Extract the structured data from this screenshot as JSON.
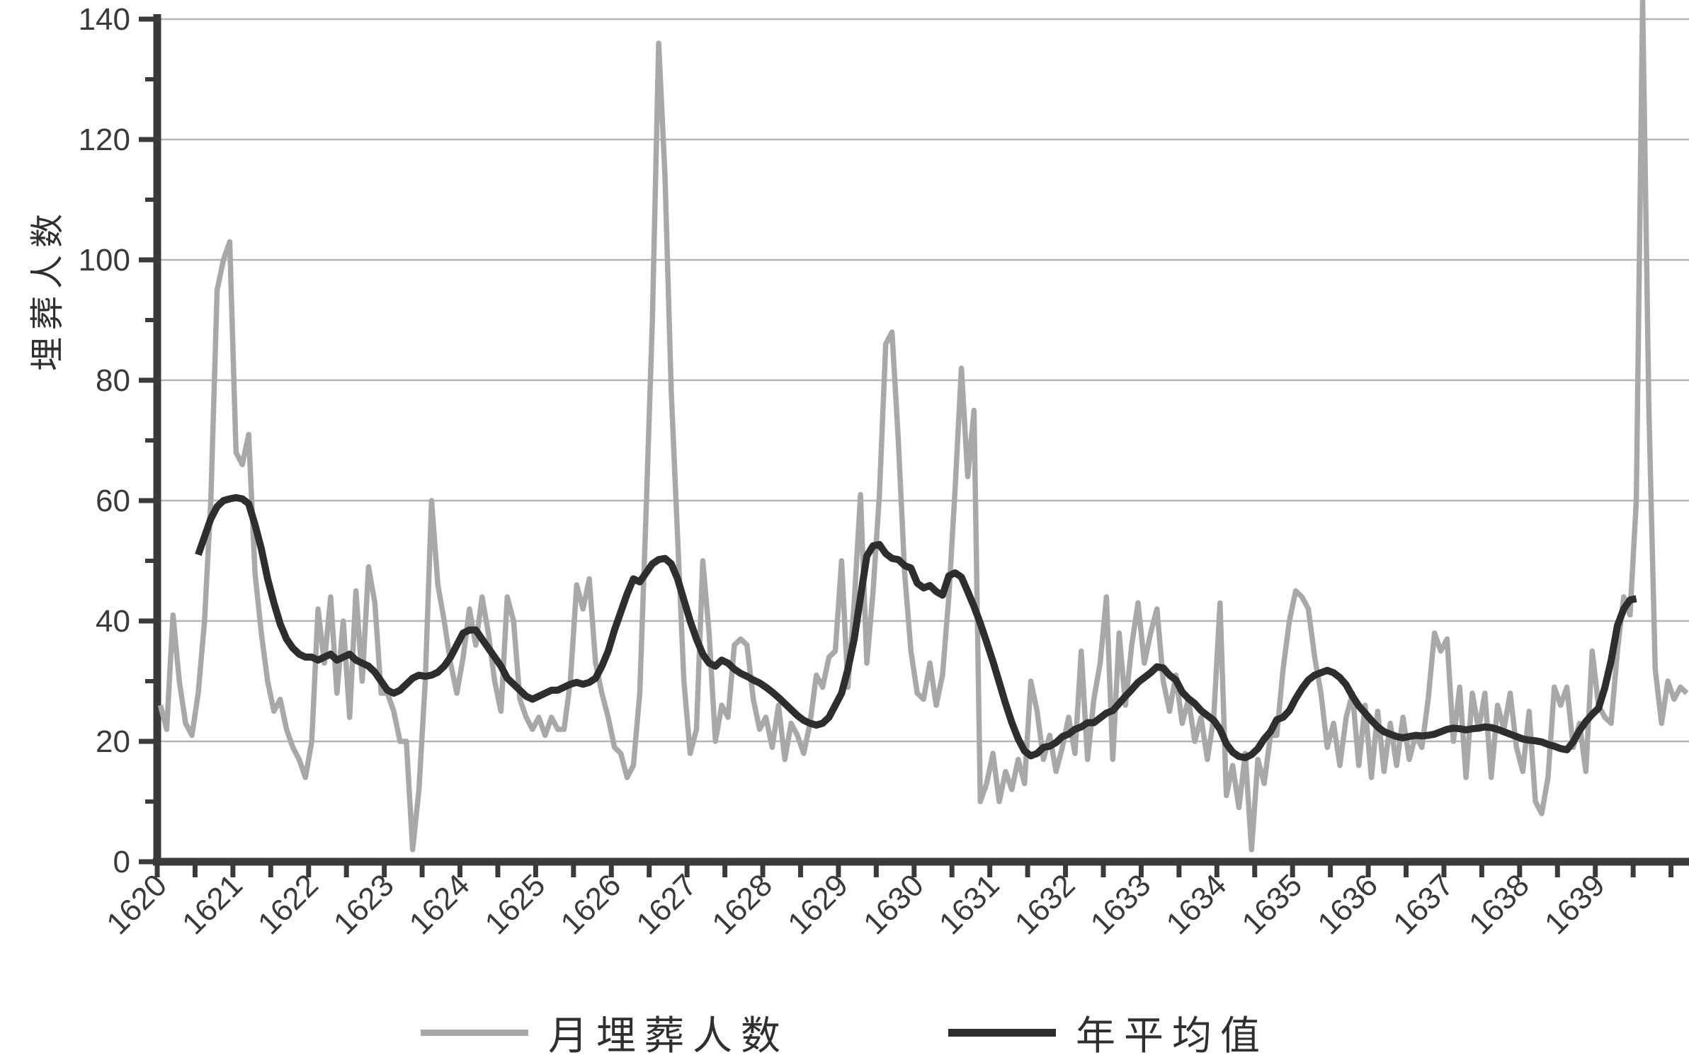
{
  "y_axis": {
    "label": "埋葬人数",
    "major_ticks": [
      0,
      20,
      40,
      60,
      80,
      100,
      120,
      140
    ],
    "minor_ticks": [
      10,
      30,
      50,
      70,
      90,
      110,
      130
    ],
    "range": [
      0,
      140
    ]
  },
  "x_axis": {
    "year_labels": [
      "1620",
      "1621",
      "1622",
      "1623",
      "1624",
      "1625",
      "1626",
      "1627",
      "1628",
      "1629",
      "1630",
      "1631",
      "1632",
      "1633",
      "1634",
      "1635",
      "1636",
      "1637",
      "1638",
      "1639"
    ],
    "ticks_per_year": 2
  },
  "legend": [
    {
      "label": "月埋葬人数",
      "color": "#a8a8a8"
    },
    {
      "label": "年平均值",
      "color": "#2e2e2e"
    }
  ],
  "colors": {
    "monthly_line": "#a8a8a8",
    "average_line": "#2e2e2e",
    "axis": "#3a3a3a",
    "grid": "#b4b4b4",
    "text": "#3a3a3a"
  },
  "chart_data": {
    "type": "line",
    "title": "",
    "xlabel": "",
    "ylabel": "埋葬人数",
    "ylim": [
      0,
      140
    ],
    "x_start_year": 1620,
    "x_unit": "month",
    "grid": "horizontal",
    "legend_position": "bottom",
    "series": [
      {
        "name": "月埋葬人数",
        "color": "#a8a8a8",
        "start_month_offset": 0,
        "start": "1620-01",
        "values": [
          26,
          22,
          41,
          30,
          23,
          21,
          28,
          40,
          60,
          95,
          100,
          103,
          68,
          66,
          71,
          48,
          38,
          30,
          25,
          27,
          22,
          19,
          17,
          14,
          20,
          42,
          33,
          44,
          28,
          40,
          24,
          45,
          30,
          49,
          43,
          28,
          28,
          25,
          20,
          20,
          2,
          12,
          30,
          60,
          46,
          40,
          33,
          28,
          34,
          42,
          36,
          44,
          38,
          30,
          25,
          44,
          40,
          27,
          24,
          22,
          24,
          21,
          24,
          22,
          22,
          30,
          46,
          42,
          47,
          33,
          28,
          24,
          19,
          18,
          14,
          16,
          28,
          58,
          90,
          136,
          114,
          78,
          54,
          30,
          18,
          22,
          50,
          38,
          20,
          26,
          24,
          36,
          37,
          36,
          27,
          22,
          24,
          19,
          26,
          17,
          23,
          21,
          18,
          23,
          31,
          29,
          34,
          35,
          50,
          29,
          43,
          61,
          33,
          45,
          61,
          86,
          88,
          70,
          48,
          35,
          28,
          27,
          33,
          26,
          31,
          44,
          62,
          82,
          64,
          75,
          10,
          13,
          18,
          10,
          15,
          12,
          17,
          13,
          30,
          25,
          17,
          21,
          15,
          19,
          24,
          18,
          35,
          17,
          27,
          33,
          44,
          17,
          38,
          26,
          36,
          43,
          33,
          38,
          42,
          30,
          25,
          31,
          23,
          27,
          20,
          24,
          17,
          24,
          43,
          11,
          16,
          9,
          18,
          2,
          17,
          13,
          21,
          21,
          32,
          40,
          45,
          44,
          42,
          34,
          28,
          19,
          23,
          16,
          24,
          28,
          16,
          26,
          14,
          25,
          15,
          23,
          16,
          24,
          17,
          21,
          19,
          27,
          38,
          35,
          37,
          20,
          29,
          14,
          28,
          22,
          28,
          14,
          26,
          22,
          28,
          19,
          15,
          25,
          10,
          8,
          14,
          29,
          26,
          29,
          19,
          23,
          15,
          35,
          26,
          24,
          23,
          35,
          44,
          41,
          60,
          143,
          75,
          32,
          23,
          30,
          27,
          29,
          28
        ]
      },
      {
        "name": "年平均值",
        "color": "#2e2e2e",
        "start_month_offset": 6,
        "start": "1620-07",
        "values": [
          51,
          54,
          57,
          59,
          60,
          60.3,
          60.5,
          60.3,
          59.5,
          56,
          52,
          47,
          43,
          39.5,
          37,
          35.5,
          34.5,
          34,
          34,
          33.5,
          34,
          34.5,
          33.5,
          34,
          34.5,
          33.5,
          33,
          32.5,
          31.5,
          30,
          28.5,
          28,
          28.5,
          29.5,
          30.5,
          31,
          30.8,
          31,
          31.5,
          32.5,
          34,
          36,
          38,
          38.5,
          38.5,
          37,
          35.5,
          34,
          32.5,
          30.5,
          29.5,
          28.5,
          27.5,
          27,
          27.5,
          28,
          28.5,
          28.5,
          29,
          29.5,
          29.8,
          29.5,
          29.8,
          30.5,
          32.5,
          35,
          38.5,
          41.5,
          44.5,
          47,
          46.5,
          48,
          49.5,
          50.2,
          50.4,
          49.5,
          47,
          43.5,
          40,
          37,
          34.5,
          33,
          32.5,
          33.5,
          33,
          32,
          31.3,
          30.8,
          30.2,
          29.7,
          29,
          28.2,
          27.3,
          26.3,
          25.3,
          24.3,
          23.5,
          23,
          22.7,
          23,
          24,
          26,
          28,
          32,
          37,
          44,
          50.8,
          52.5,
          52.7,
          51.2,
          50.4,
          50.2,
          49.2,
          48.8,
          46.3,
          45.5,
          45.9,
          44.9,
          44.3,
          47.5,
          48,
          47.3,
          44.9,
          42.4,
          39.6,
          36.5,
          33.3,
          29.8,
          26.3,
          23.1,
          20.4,
          18.4,
          17.6,
          18,
          19,
          19.2,
          19.8,
          20.8,
          21.2,
          22,
          22.4,
          23.1,
          23.1,
          23.9,
          24.7,
          25.1,
          26.3,
          27.5,
          28.6,
          29.8,
          30.6,
          31.4,
          32.4,
          32.2,
          31,
          30.2,
          28.2,
          27.1,
          26.3,
          25.1,
          24.3,
          23.5,
          22,
          19.6,
          18.2,
          17.5,
          17.3,
          17.8,
          18.8,
          20.4,
          21.6,
          23.6,
          24,
          25.1,
          27.1,
          28.8,
          30.2,
          31,
          31.4,
          31.8,
          31.4,
          30.6,
          29.4,
          27.5,
          25.9,
          24.7,
          23.5,
          22.4,
          21.6,
          21.2,
          20.8,
          20.6,
          20.8,
          21,
          20.9,
          21,
          21.2,
          21.6,
          22,
          22.2,
          22.1,
          21.9,
          22.1,
          22.2,
          22.4,
          22.3,
          22,
          21.6,
          21.2,
          20.8,
          20.4,
          20.2,
          20.1,
          19.9,
          19.5,
          19.2,
          18.8,
          18.6,
          19.9,
          21.8,
          23.3,
          24.5,
          25.5,
          28.9,
          33.4,
          39.2,
          42,
          43.5,
          43.7
        ]
      }
    ]
  }
}
